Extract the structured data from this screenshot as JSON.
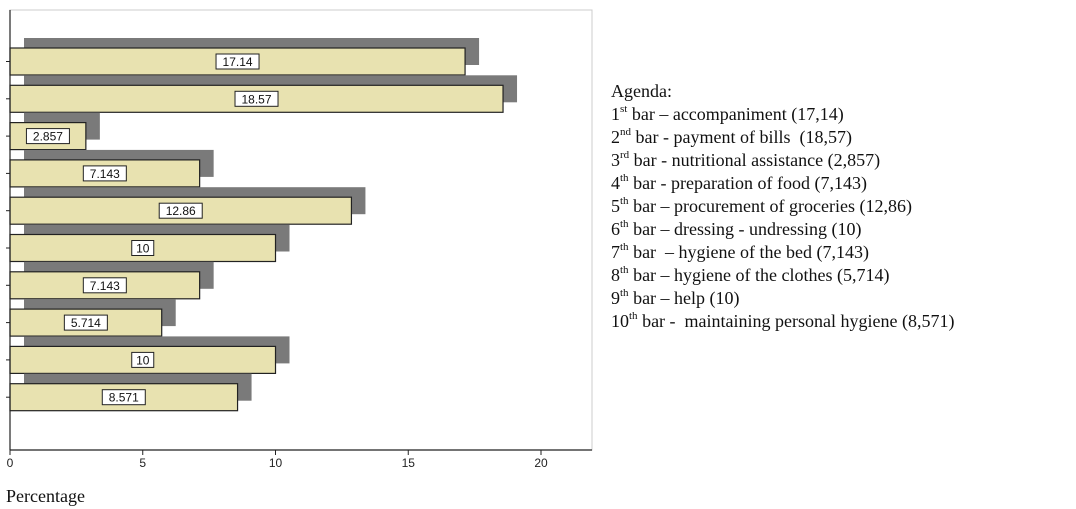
{
  "chart_data": {
    "type": "bar",
    "orientation": "horizontal",
    "values": [
      17.14,
      18.57,
      2.857,
      7.143,
      12.86,
      10,
      7.143,
      5.714,
      10,
      8.571
    ],
    "value_labels": [
      "17.14",
      "18.57",
      "2.857",
      "7.143",
      "12.86",
      "10",
      "7.143",
      "5.714",
      "10",
      "8.571"
    ],
    "xlim": [
      0,
      22
    ],
    "xticks": [
      "0",
      "5",
      "10",
      "15",
      "20"
    ],
    "xlabel": "Percentage",
    "bar_color": "#e8e2b0",
    "shadow_color": "#7a7a7a",
    "bar_border_color": "#222222"
  },
  "agenda": {
    "title": "Agenda:",
    "items": [
      {
        "num": "1",
        "sup": "st",
        "text": " bar – accompaniment (17,14)"
      },
      {
        "num": "2",
        "sup": "nd",
        "text": " bar - payment of bills  (18,57)"
      },
      {
        "num": "3",
        "sup": "rd",
        "text": " bar - nutritional assistance (2,857)"
      },
      {
        "num": "4",
        "sup": "th",
        "text": " bar - preparation of food (7,143)"
      },
      {
        "num": "5",
        "sup": "th",
        "text": " bar – procurement of groceries (12,86)"
      },
      {
        "num": "6",
        "sup": "th",
        "text": " bar – dressing - undressing (10)"
      },
      {
        "num": "7",
        "sup": "th",
        "text": " bar  – hygiene of the bed (7,143)"
      },
      {
        "num": "8",
        "sup": "th",
        "text": " bar – hygiene of the clothes (5,714)"
      },
      {
        "num": "9",
        "sup": "th",
        "text": " bar – help (10)"
      },
      {
        "num": "10",
        "sup": "th",
        "text": " bar -  maintaining personal hygiene (8,571)"
      }
    ]
  }
}
